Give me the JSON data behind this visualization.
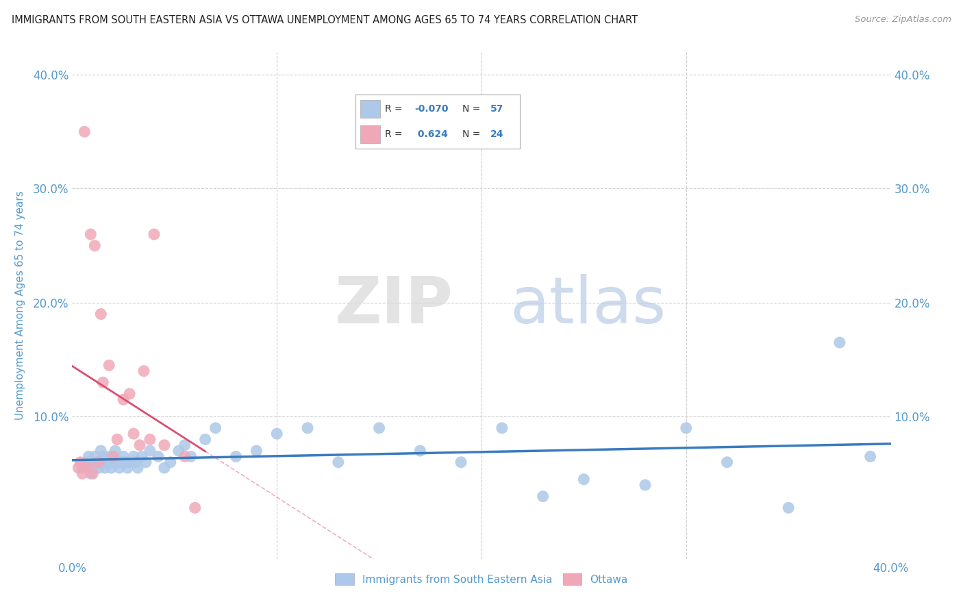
{
  "title": "IMMIGRANTS FROM SOUTH EASTERN ASIA VS OTTAWA UNEMPLOYMENT AMONG AGES 65 TO 74 YEARS CORRELATION CHART",
  "source": "Source: ZipAtlas.com",
  "ylabel": "Unemployment Among Ages 65 to 74 years",
  "xlim": [
    0.0,
    0.4
  ],
  "ylim": [
    -0.025,
    0.42
  ],
  "blue_R": -0.07,
  "blue_N": 57,
  "pink_R": 0.624,
  "pink_N": 24,
  "blue_color": "#adc8e8",
  "pink_color": "#f0a8b8",
  "blue_line_color": "#3a7bbf",
  "pink_line_color": "#d94f70",
  "legend_blue_label": "Immigrants from South Eastern Asia",
  "legend_pink_label": "Ottawa",
  "watermark_zip": "ZIP",
  "watermark_atlas": "atlas",
  "background_color": "#ffffff",
  "grid_color": "#cccccc",
  "title_color": "#222222",
  "tick_color": "#5599cc",
  "blue_scatter_x": [
    0.005,
    0.007,
    0.008,
    0.009,
    0.01,
    0.01,
    0.011,
    0.012,
    0.013,
    0.014,
    0.015,
    0.015,
    0.016,
    0.017,
    0.018,
    0.019,
    0.02,
    0.02,
    0.021,
    0.022,
    0.023,
    0.024,
    0.025,
    0.026,
    0.027,
    0.028,
    0.03,
    0.031,
    0.032,
    0.034,
    0.036,
    0.038,
    0.042,
    0.045,
    0.048,
    0.052,
    0.055,
    0.058,
    0.065,
    0.07,
    0.08,
    0.09,
    0.1,
    0.115,
    0.13,
    0.15,
    0.17,
    0.19,
    0.21,
    0.23,
    0.25,
    0.28,
    0.3,
    0.32,
    0.35,
    0.375,
    0.39
  ],
  "blue_scatter_y": [
    0.055,
    0.06,
    0.065,
    0.05,
    0.055,
    0.06,
    0.065,
    0.06,
    0.055,
    0.07,
    0.06,
    0.065,
    0.055,
    0.06,
    0.065,
    0.055,
    0.06,
    0.065,
    0.07,
    0.06,
    0.055,
    0.06,
    0.065,
    0.06,
    0.055,
    0.06,
    0.065,
    0.06,
    0.055,
    0.065,
    0.06,
    0.07,
    0.065,
    0.055,
    0.06,
    0.07,
    0.075,
    0.065,
    0.08,
    0.09,
    0.065,
    0.07,
    0.085,
    0.09,
    0.06,
    0.09,
    0.07,
    0.06,
    0.09,
    0.03,
    0.045,
    0.04,
    0.09,
    0.06,
    0.02,
    0.165,
    0.065
  ],
  "pink_scatter_x": [
    0.003,
    0.004,
    0.005,
    0.006,
    0.008,
    0.009,
    0.01,
    0.011,
    0.013,
    0.014,
    0.015,
    0.018,
    0.02,
    0.022,
    0.025,
    0.028,
    0.03,
    0.033,
    0.035,
    0.038,
    0.04,
    0.045,
    0.055,
    0.06
  ],
  "pink_scatter_y": [
    0.055,
    0.06,
    0.05,
    0.35,
    0.055,
    0.26,
    0.05,
    0.25,
    0.06,
    0.19,
    0.13,
    0.145,
    0.065,
    0.08,
    0.115,
    0.12,
    0.085,
    0.075,
    0.14,
    0.08,
    0.26,
    0.075,
    0.065,
    0.02
  ]
}
